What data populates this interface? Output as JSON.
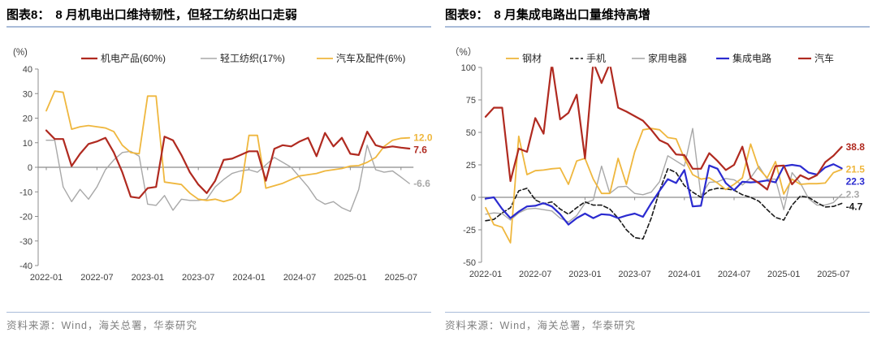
{
  "page": {
    "background": "#ffffff",
    "rule_color": "#a9bcd9"
  },
  "figure8": {
    "label": "图表8：",
    "title": "8 月机电出口维持韧性，但轻工纺织出口走弱",
    "source": "资料来源：Wind，海关总署，华泰研究"
  },
  "figure9": {
    "label": "图表9：",
    "title": "8 月集成电路出口量维持高增",
    "source": "资料来源：Wind，海关总署，华泰研究"
  },
  "chart_data": [
    {
      "type": "line",
      "title": "图表8： 8 月机电出口维持韧性，但轻工纺织出口走弱",
      "unit_label": "(%)",
      "months_start": "2022-01",
      "n_points": 44,
      "x_tick_labels": [
        "2022-01",
        "2022-07",
        "2023-01",
        "2023-07",
        "2024-01",
        "2024-07",
        "2025-01",
        "2025-07"
      ],
      "ylim": [
        -40,
        40
      ],
      "y_ticks": [
        40,
        30,
        20,
        10,
        0,
        -10,
        -20,
        -30,
        -40
      ],
      "grid": false,
      "legend_position": "top",
      "series": [
        {
          "name": "机电产品(60%)",
          "color": "#b02a20",
          "width": 2.2,
          "dash": false,
          "end_label": "7.6",
          "values": [
            15,
            11.5,
            11.5,
            0.5,
            5.5,
            9.5,
            10.5,
            12,
            6,
            -2,
            -12,
            -12.5,
            -8.5,
            -8,
            12.5,
            11,
            5,
            -2,
            -7,
            -10.5,
            -5.5,
            3,
            3.5,
            5,
            6.5,
            6.5,
            -5.5,
            7.5,
            9,
            8.5,
            10.5,
            12,
            4.5,
            14,
            8.5,
            12,
            5.5,
            5,
            14.5,
            9,
            8,
            8.5,
            8,
            7.6
          ]
        },
        {
          "name": "轻工纺织(17%)",
          "color": "#a8a8a8",
          "width": 1.4,
          "dash": false,
          "end_label": "-6.6",
          "values": [
            11,
            11,
            -8,
            -14,
            -9,
            -13,
            -8,
            -1,
            3,
            6,
            6.5,
            4.5,
            -15,
            -15.5,
            -11.5,
            -17.5,
            -13,
            -13.5,
            -13.5,
            -13,
            -8,
            -5,
            -2.5,
            -1.5,
            -1,
            -2,
            1,
            4,
            2,
            0,
            -4,
            -8,
            -13,
            -15,
            -14,
            -16.5,
            -18,
            -9,
            9,
            -1,
            -2,
            -1.5,
            -4,
            -6.6
          ]
        },
        {
          "name": "汽车及配件(6%)",
          "color": "#efb73e",
          "width": 1.8,
          "dash": false,
          "end_label": "12.0",
          "values": [
            23,
            31,
            30.5,
            15.5,
            16.5,
            17,
            16.5,
            16,
            14.5,
            9,
            6,
            5.5,
            29,
            29,
            -6,
            -6.5,
            -7,
            -10.5,
            -13,
            -13.5,
            -13,
            -14,
            -13,
            -10,
            13,
            13,
            -8.5,
            -7.5,
            -6.5,
            -5,
            -3.5,
            -3,
            -2.5,
            -1.5,
            -1,
            -0.5,
            0.5,
            0.7,
            2,
            4,
            8.5,
            11,
            11.8,
            12
          ]
        }
      ]
    },
    {
      "type": "line",
      "title": "图表9： 8 月集成电路出口量维持高增",
      "unit_label": "（%）",
      "months_start": "2022-01",
      "n_points": 44,
      "x_tick_labels": [
        "2022-01",
        "2022-07",
        "2023-01",
        "2023-07",
        "2024-01",
        "2024-07",
        "2025-01",
        "2025-07"
      ],
      "ylim": [
        -50,
        100
      ],
      "y_ticks": [
        100,
        75,
        50,
        25,
        0,
        -25,
        -50
      ],
      "grid": false,
      "legend_position": "top",
      "series": [
        {
          "name": "钢材",
          "color": "#efb73e",
          "width": 1.8,
          "dash": false,
          "end_label": "21.5",
          "values": [
            -8,
            -21,
            -23,
            -35,
            47,
            17.5,
            20.5,
            21,
            22,
            22.5,
            10,
            28,
            30,
            14,
            3,
            3,
            30,
            10,
            35,
            52,
            53,
            52,
            46,
            45,
            30,
            17.5,
            14,
            15,
            11,
            6,
            10,
            15,
            41,
            22,
            15,
            27.5,
            2.5,
            14,
            10,
            10.5,
            10.5,
            11,
            19,
            21.5
          ]
        },
        {
          "name": "手机",
          "color": "#1a1a1a",
          "width": 1.6,
          "dash": true,
          "end_label": "-4.7",
          "values": [
            -18,
            -17,
            -12,
            -8,
            5,
            7,
            -2,
            -5,
            -3.5,
            -9,
            -13,
            -8,
            -3.5,
            -6,
            -6,
            -9,
            -16,
            -25,
            -31,
            -32,
            -16,
            5,
            22,
            19,
            9,
            4,
            0,
            5.5,
            7,
            6.5,
            5.5,
            2,
            0,
            -3,
            -9.5,
            -15.5,
            -17.5,
            -6,
            1,
            0,
            -4,
            -7.5,
            -7,
            -4.7
          ]
        },
        {
          "name": "家用电器",
          "color": "#a8a8a8",
          "width": 1.4,
          "dash": false,
          "end_label": "2.3",
          "values": [
            -13,
            -12,
            -12.5,
            -17.5,
            -12,
            -9,
            -8.5,
            -9.5,
            -10.5,
            -16,
            -19,
            -14,
            -4.5,
            -2,
            24,
            3,
            8,
            8.5,
            3,
            2,
            4,
            12,
            32,
            28,
            24,
            53,
            1,
            11.5,
            12,
            14.5,
            13.5,
            9.5,
            15,
            24,
            14,
            14,
            -9.5,
            19,
            11,
            -1,
            -6,
            -6,
            -4,
            2.3
          ]
        },
        {
          "name": "集成电路",
          "color": "#2b2bd0",
          "width": 2.2,
          "dash": false,
          "end_label": "22.3",
          "values": [
            -1,
            0,
            -9,
            -16,
            -11,
            -7,
            -6.5,
            -4.5,
            -7,
            -13,
            -21,
            -16,
            -12.5,
            -16,
            -13,
            -13.5,
            -16,
            -14,
            -12.5,
            -15,
            -4.5,
            5,
            14,
            11,
            21,
            -7,
            -6.5,
            24.5,
            22,
            11,
            5.5,
            12,
            11.5,
            12,
            13,
            11.5,
            24,
            25,
            24,
            19,
            17.5,
            23,
            25.5,
            22.3
          ]
        },
        {
          "name": "汽车",
          "color": "#b02a20",
          "width": 2.2,
          "dash": false,
          "end_label": "38.8",
          "values": [
            62,
            69,
            69,
            12.5,
            37.5,
            35,
            61,
            49,
            103,
            60,
            65,
            79,
            30,
            104,
            88,
            103,
            69,
            66,
            62.5,
            59,
            52,
            44,
            41,
            33,
            32.5,
            22,
            22,
            34,
            28,
            21,
            25,
            39,
            15,
            11,
            6,
            24,
            24.5,
            10,
            17,
            14,
            17,
            27,
            32,
            38.8
          ]
        }
      ]
    }
  ]
}
